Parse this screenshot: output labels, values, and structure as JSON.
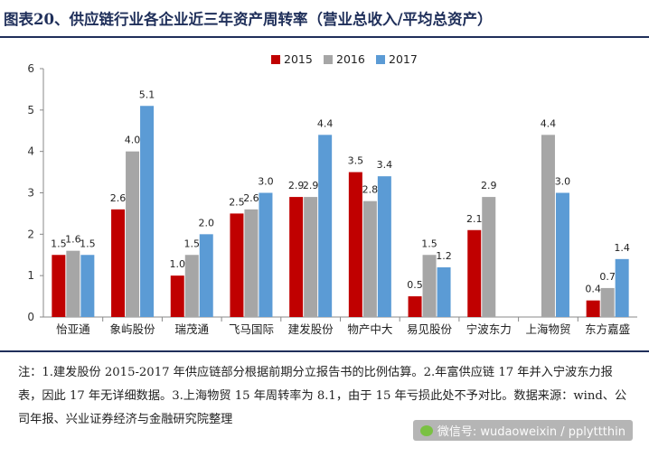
{
  "title": "图表20、供应链行业各企业近三年资产周转率（营业总收入/平均总资产）",
  "chart_data": {
    "type": "bar",
    "title": "",
    "xlabel": "",
    "ylabel": "",
    "ylim": [
      0,
      6
    ],
    "yticks": [
      0,
      1,
      2,
      3,
      4,
      5,
      6
    ],
    "grid": false,
    "legend_position": "top-center",
    "categories": [
      "怡亚通",
      "象屿股份",
      "瑞茂通",
      "飞马国际",
      "建发股份",
      "物产中大",
      "易见股份",
      "宁波东力",
      "上海物贸",
      "东方嘉盛"
    ],
    "series": [
      {
        "name": "2015",
        "color": "#c00000",
        "values": [
          1.5,
          2.6,
          1.0,
          2.5,
          2.9,
          3.5,
          0.5,
          2.1,
          null,
          0.4
        ],
        "labels": [
          "1.5",
          "2.6",
          "1.0",
          "2.5",
          "2.9",
          "3.5",
          "0.5",
          "2.1",
          "",
          "0.4"
        ]
      },
      {
        "name": "2016",
        "color": "#a6a6a6",
        "values": [
          1.6,
          4.0,
          1.5,
          2.6,
          2.9,
          2.8,
          1.5,
          2.9,
          4.4,
          0.7
        ],
        "labels": [
          "1.6",
          "4.0",
          "1.5",
          "2.6",
          "2.9",
          "2.8",
          "1.5",
          "2.9",
          "4.4",
          "0.7"
        ]
      },
      {
        "name": "2017",
        "color": "#5b9bd5",
        "values": [
          1.5,
          5.1,
          2.0,
          3.0,
          4.4,
          3.4,
          1.2,
          null,
          3.0,
          1.4
        ],
        "labels": [
          "1.5",
          "5.1",
          "2.0",
          "3.0",
          "4.4",
          "3.4",
          "1.2",
          "",
          "3.0",
          "1.4"
        ]
      }
    ]
  },
  "note": "注：1.建发股份 2015-2017 年供应链部分根据前期分立报告书的比例估算。2.年富供应链 17 年并入宁波东力报表，因此 17 年无详细数据。3.上海物贸 15 年周转率为 8.1，由于 15 年亏损此处不予对比。数据来源：wind、公司年报、兴业证券经济与金融研究院整理",
  "watermark": "微信号: wudaoweixin / pplyttthin"
}
